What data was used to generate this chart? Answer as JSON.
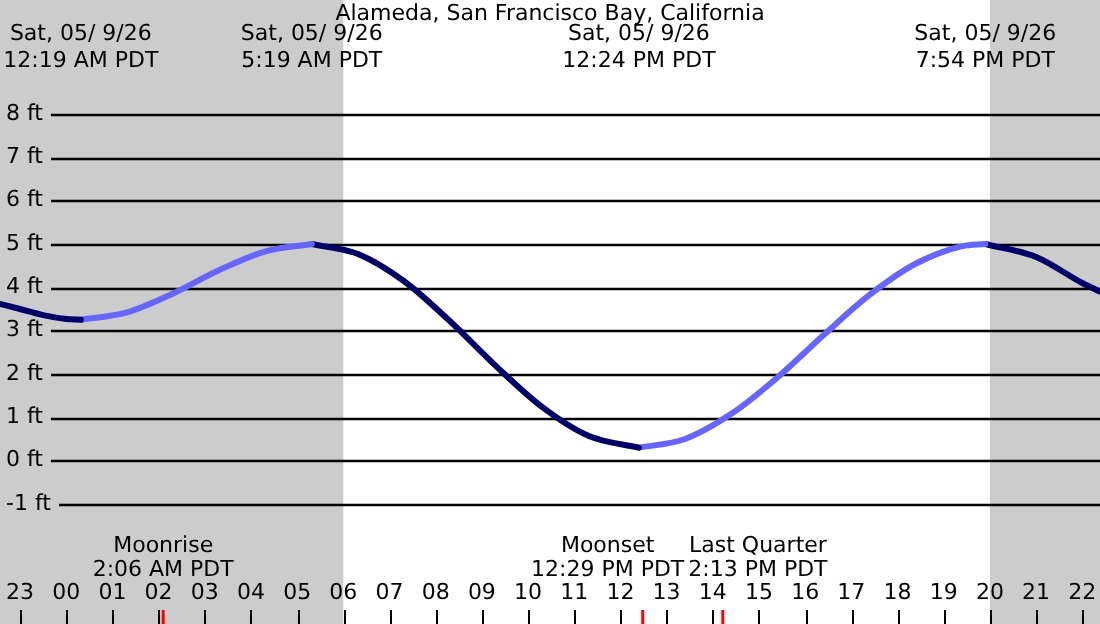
{
  "chart_data": {
    "type": "line",
    "title": "Alameda, San Francisco Bay, California",
    "xlim": [
      "--05-08T22:34",
      "--05-09T22:23"
    ],
    "xticks": [
      {
        "value": "--05-08T23:00",
        "label": "23"
      },
      {
        "value": "--05-09T00:00",
        "label": "00"
      },
      {
        "value": "--05-09T01:00",
        "label": "01"
      },
      {
        "value": "--05-09T02:00",
        "label": "02"
      },
      {
        "value": "--05-09T03:00",
        "label": "03"
      },
      {
        "value": "--05-09T04:00",
        "label": "04"
      },
      {
        "value": "--05-09T05:00",
        "label": "05"
      },
      {
        "value": "--05-09T06:00",
        "label": "06"
      },
      {
        "value": "--05-09T07:00",
        "label": "07"
      },
      {
        "value": "--05-09T08:00",
        "label": "08"
      },
      {
        "value": "--05-09T09:00",
        "label": "09"
      },
      {
        "value": "--05-09T10:00",
        "label": "10"
      },
      {
        "value": "--05-09T11:00",
        "label": "11"
      },
      {
        "value": "--05-09T12:00",
        "label": "12"
      },
      {
        "value": "--05-09T13:00",
        "label": "13"
      },
      {
        "value": "--05-09T14:00",
        "label": "14"
      },
      {
        "value": "--05-09T15:00",
        "label": "15"
      },
      {
        "value": "--05-09T16:00",
        "label": "16"
      },
      {
        "value": "--05-09T17:00",
        "label": "17"
      },
      {
        "value": "--05-09T18:00",
        "label": "18"
      },
      {
        "value": "--05-09T19:00",
        "label": "19"
      },
      {
        "value": "--05-09T20:00",
        "label": "20"
      },
      {
        "value": "--05-09T21:00",
        "label": "21"
      },
      {
        "value": "--05-09T22:00",
        "label": "22"
      }
    ],
    "x2lim": [
      "--05-08T22:34",
      "--05-09T22:23"
    ],
    "x2ticks": [
      {
        "value": "--05-09T00:19",
        "label": "Sat, 05/ 9/26\n12:19 AM PDT"
      },
      {
        "value": "--05-09T05:19",
        "label": "Sat, 05/ 9/26\n5:19 AM PDT"
      },
      {
        "value": "--05-09T12:24",
        "label": "Sat, 05/ 9/26\n12:24 PM PDT"
      },
      {
        "value": "--05-09T19:54",
        "label": "Sat, 05/ 9/26\n7:54 PM PDT"
      }
    ],
    "ylim": [
      -1,
      8
    ],
    "yticks": [
      {
        "value": -1,
        "label": "-1 ft"
      },
      {
        "value": 0,
        "label": "0 ft"
      },
      {
        "value": 1,
        "label": "1 ft"
      },
      {
        "value": 2,
        "label": "2 ft"
      },
      {
        "value": 3,
        "label": "3 ft"
      },
      {
        "value": 4,
        "label": "4 ft"
      },
      {
        "value": 5,
        "label": "5 ft"
      },
      {
        "value": 6,
        "label": "6 ft"
      },
      {
        "value": 7,
        "label": "7 ft"
      },
      {
        "value": 8,
        "label": "8 ft"
      }
    ],
    "grid": "y",
    "legend": false,
    "marker": "none",
    "line_style": "solid",
    "series": [
      {
        "color": "#000066",
        "x": [
          "--05-08T22:34",
          "--05-08T23:00",
          "--05-08T23:30",
          "--05-09T00:00",
          "--05-09T00:19"
        ],
        "values": [
          3.62,
          3.5,
          3.36,
          3.27,
          3.25
        ]
      },
      {
        "color": "#6666ff",
        "x": [
          "--05-09T00:19",
          "--05-09T01:19",
          "--05-09T02:19",
          "--05-09T03:19",
          "--05-09T04:19",
          "--05-09T05:19"
        ],
        "values": [
          3.25,
          3.42,
          3.86,
          4.4,
          4.83,
          5.0
        ]
      },
      {
        "color": "#000066",
        "x": [
          "--05-09T05:19",
          "--05-09T06:19",
          "--05-09T07:19",
          "--05-09T08:19",
          "--05-09T09:19",
          "--05-09T10:19",
          "--05-09T11:19",
          "--05-09T12:24"
        ],
        "values": [
          5.0,
          4.77,
          4.14,
          3.21,
          2.17,
          1.23,
          0.57,
          0.3
        ]
      },
      {
        "color": "#6666ff",
        "x": [
          "--05-09T12:24",
          "--05-09T13:24",
          "--05-09T14:24",
          "--05-09T15:24",
          "--05-09T16:24",
          "--05-09T17:24",
          "--05-09T18:24",
          "--05-09T19:24",
          "--05-09T19:54"
        ],
        "values": [
          0.3,
          0.5,
          1.08,
          1.92,
          2.9,
          3.83,
          4.55,
          4.95,
          5.0
        ]
      },
      {
        "color": "#000066",
        "x": [
          "--05-09T19:54",
          "--05-09T21:00",
          "--05-09T22:00",
          "--05-09T22:23"
        ],
        "values": [
          5.0,
          4.7,
          4.1,
          3.9
        ]
      }
    ],
    "bands": [
      {
        "axis": "x",
        "from": "--05-08T22:34",
        "to": "--05-09T06:00",
        "color": "#cccccc"
      },
      {
        "axis": "x",
        "from": "--05-09T20:00",
        "to": "--05-09T22:23",
        "color": "#cccccc"
      }
    ],
    "ref_lines": [
      {
        "axis": "x",
        "value": "--05-09T02:06",
        "label": "Moonrise\n2:06 AM PDT",
        "color": "#ff0000"
      },
      {
        "axis": "x",
        "value": "--05-09T12:29",
        "label": "Moonset\n12:29 PM PDT",
        "color": "#ff0000"
      },
      {
        "axis": "x",
        "value": "--05-09T14:13",
        "label": "Last Quarter\n2:13 PM PDT",
        "color": "#ff0000"
      }
    ]
  }
}
